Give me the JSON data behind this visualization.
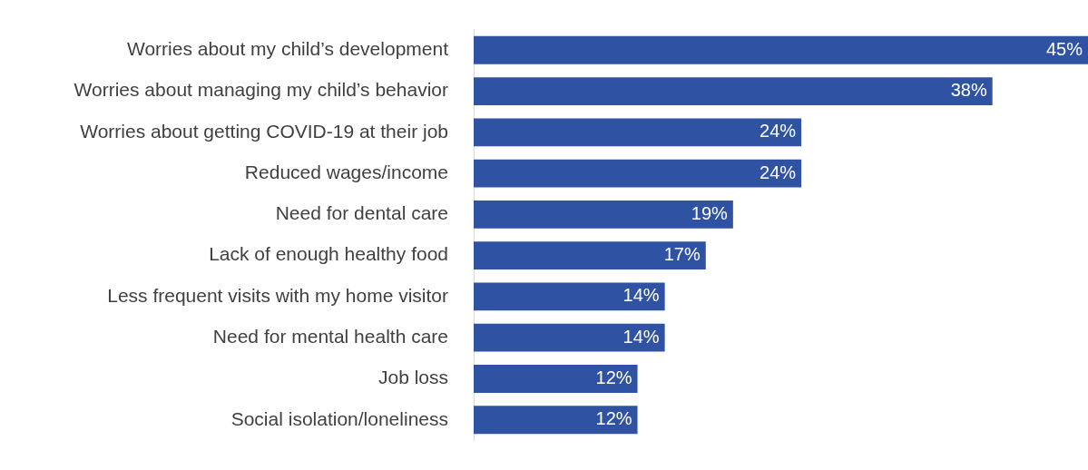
{
  "chart_data": {
    "type": "bar",
    "orientation": "horizontal",
    "categories": [
      "Worries about my child’s development",
      "Worries about managing my child’s behavior",
      "Worries about getting COVID-19 at their job",
      "Reduced wages/income",
      "Need for dental care",
      "Lack of enough healthy food",
      "Less frequent visits with my home visitor",
      "Need for mental health care",
      "Job loss",
      "Social isolation/loneliness"
    ],
    "values": [
      45,
      38,
      24,
      24,
      19,
      17,
      14,
      14,
      12,
      12
    ],
    "value_labels": [
      "45%",
      "38%",
      "24%",
      "24%",
      "19%",
      "17%",
      "14%",
      "14%",
      "12%",
      "12%"
    ],
    "color": "#2f52a3",
    "tick_labels": "y",
    "grid": false,
    "legend": false
  }
}
